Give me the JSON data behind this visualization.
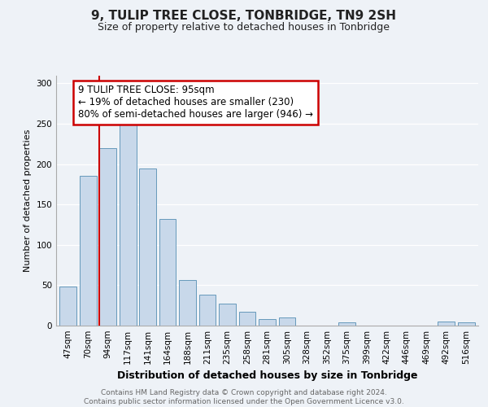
{
  "title": "9, TULIP TREE CLOSE, TONBRIDGE, TN9 2SH",
  "subtitle": "Size of property relative to detached houses in Tonbridge",
  "xlabel": "Distribution of detached houses by size in Tonbridge",
  "ylabel": "Number of detached properties",
  "bar_labels": [
    "47sqm",
    "70sqm",
    "94sqm",
    "117sqm",
    "141sqm",
    "164sqm",
    "188sqm",
    "211sqm",
    "235sqm",
    "258sqm",
    "281sqm",
    "305sqm",
    "328sqm",
    "352sqm",
    "375sqm",
    "399sqm",
    "422sqm",
    "446sqm",
    "469sqm",
    "492sqm",
    "516sqm"
  ],
  "bar_values": [
    48,
    185,
    220,
    250,
    195,
    132,
    56,
    38,
    27,
    17,
    8,
    10,
    0,
    0,
    4,
    0,
    0,
    0,
    0,
    5,
    4
  ],
  "bar_color": "#c8d8ea",
  "bar_edge_color": "#6699bb",
  "highlight_bar_index": 2,
  "highlight_color": "#cc0000",
  "ylim": [
    0,
    310
  ],
  "annotation_line1": "9 TULIP TREE CLOSE: 95sqm",
  "annotation_line2": "← 19% of detached houses are smaller (230)",
  "annotation_line3": "80% of semi-detached houses are larger (946) →",
  "annotation_box_color": "#ffffff",
  "annotation_box_edge": "#cc0000",
  "footer_text": "Contains HM Land Registry data © Crown copyright and database right 2024.\nContains public sector information licensed under the Open Government Licence v3.0.",
  "bg_color": "#eef2f7",
  "plot_bg_color": "#eef2f7",
  "grid_color": "#ffffff",
  "title_fontsize": 11,
  "subtitle_fontsize": 9,
  "ylabel_fontsize": 8,
  "xlabel_fontsize": 9,
  "tick_fontsize": 7.5,
  "footer_fontsize": 6.5,
  "annotation_fontsize": 8.5
}
